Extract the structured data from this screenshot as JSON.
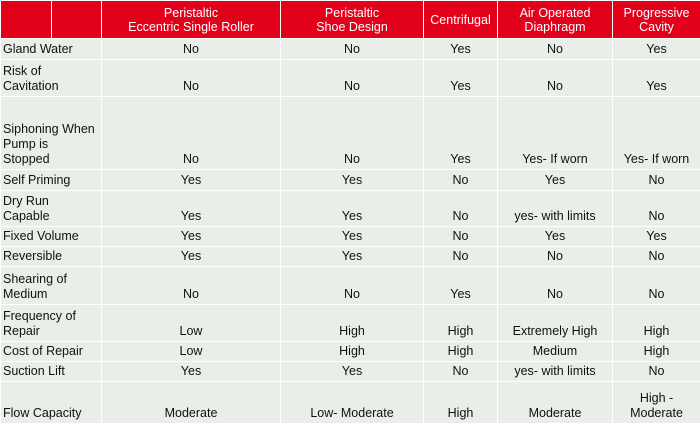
{
  "columns": [
    "Peristaltic\nEccentric Single Roller",
    "Peristaltic\nShoe Design",
    "Centrifugal",
    "Air Operated\nDiaphragm",
    "Progressive\nCavity"
  ],
  "rows": [
    {
      "label": "Gland Water",
      "values": [
        "No",
        "No",
        "Yes",
        "No",
        "Yes"
      ]
    },
    {
      "label": "Risk of\nCavitation",
      "values": [
        "No",
        "No",
        "Yes",
        "No",
        "Yes"
      ]
    },
    {
      "label": "Siphoning When\nPump is Stopped",
      "values": [
        "No",
        "No",
        "Yes",
        "Yes- If worn",
        "Yes- If worn"
      ]
    },
    {
      "label": "Self Priming",
      "values": [
        "Yes",
        "Yes",
        "No",
        "Yes",
        "No"
      ]
    },
    {
      "label": "Dry Run\nCapable",
      "values": [
        "Yes",
        "Yes",
        "No",
        "yes- with limits",
        "No"
      ]
    },
    {
      "label": "Fixed Volume",
      "values": [
        "Yes",
        "Yes",
        "No",
        "Yes",
        "Yes"
      ]
    },
    {
      "label": "Reversible",
      "values": [
        "Yes",
        "Yes",
        "No",
        "No",
        "No"
      ]
    },
    {
      "label": "Shearing of\nMedium",
      "values": [
        "No",
        "No",
        "Yes",
        "No",
        "No"
      ]
    },
    {
      "label": "Frequency of\nRepair",
      "values": [
        "Low",
        "High",
        "High",
        "Extremely High",
        "High"
      ]
    },
    {
      "label": "Cost of Repair",
      "values": [
        "Low",
        "High",
        "High",
        "Medium",
        "High"
      ]
    },
    {
      "label": "Suction Lift",
      "values": [
        "Yes",
        "Yes",
        "No",
        "yes- with limits",
        "No"
      ]
    },
    {
      "label": "Flow Capacity",
      "values": [
        "Moderate",
        "Low- Moderate",
        "High",
        "Moderate",
        "High -\nModerate"
      ]
    }
  ]
}
